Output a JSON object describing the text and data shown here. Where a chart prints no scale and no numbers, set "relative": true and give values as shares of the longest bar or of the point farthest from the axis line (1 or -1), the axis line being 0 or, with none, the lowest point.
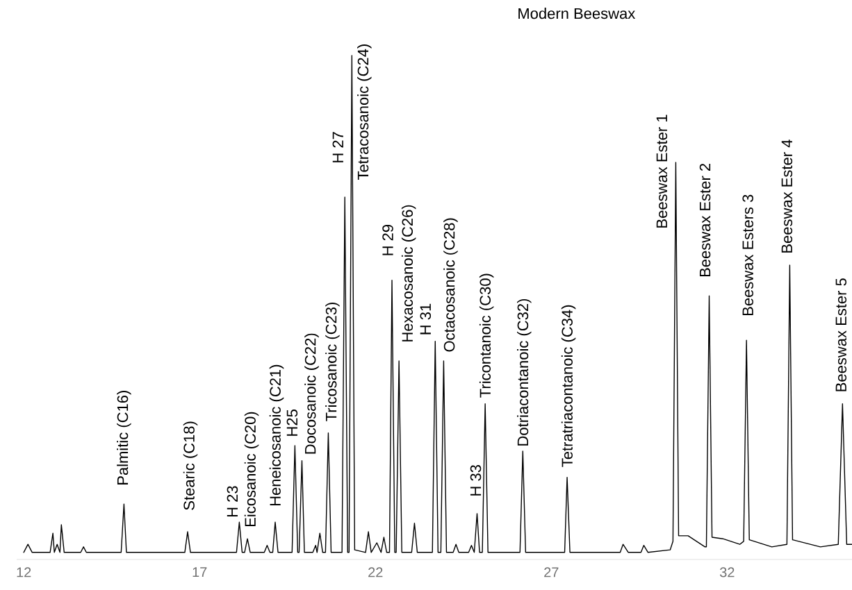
{
  "chart_data": {
    "type": "line",
    "title": "Modern Beeswax",
    "relative": true,
    "xlim": [
      11.8,
      35.55
    ],
    "xticks": [
      12,
      17,
      22,
      27,
      32
    ],
    "x": [
      12.0,
      12.12,
      12.24,
      12.75,
      12.83,
      12.87,
      12.95,
      13.03,
      13.07,
      13.15,
      13.62,
      13.7,
      13.78,
      14.77,
      14.85,
      14.92,
      16.58,
      16.66,
      16.74,
      18.05,
      18.13,
      18.21,
      18.28,
      18.36,
      18.44,
      18.84,
      18.92,
      19.0,
      19.08,
      19.15,
      19.23,
      19.63,
      19.71,
      19.79,
      19.83,
      19.91,
      19.98,
      20.22,
      20.3,
      20.34,
      20.42,
      20.5,
      20.58,
      20.66,
      20.74,
      21.05,
      21.13,
      21.21,
      21.25,
      21.33,
      21.41,
      21.72,
      21.8,
      21.88,
      22.04,
      22.16,
      22.24,
      22.32,
      22.4,
      22.47,
      22.55,
      22.59,
      22.67,
      22.75,
      23.03,
      23.11,
      23.19,
      23.62,
      23.7,
      23.78,
      23.86,
      23.94,
      24.02,
      24.21,
      24.29,
      24.37,
      24.65,
      24.73,
      24.81,
      24.89,
      24.96,
      25.04,
      25.12,
      25.2,
      26.11,
      26.19,
      26.27,
      27.38,
      27.45,
      27.53,
      28.96,
      29.04,
      29.19,
      29.55,
      29.63,
      29.75,
      30.38,
      30.46,
      30.54,
      30.62,
      30.89,
      31.37,
      31.41,
      31.49,
      31.57,
      31.88,
      32.36,
      32.47,
      32.55,
      32.63,
      33.27,
      33.7,
      33.78,
      33.86,
      34.65,
      35.16,
      35.28,
      35.4,
      35.55
    ],
    "series": [
      {
        "color": "#000000",
        "values": [
          0.014,
          0.03,
          0.014,
          0.014,
          0.052,
          0.014,
          0.03,
          0.014,
          0.069,
          0.014,
          0.014,
          0.025,
          0.014,
          0.014,
          0.11,
          0.014,
          0.014,
          0.055,
          0.014,
          0.014,
          0.074,
          0.014,
          0.014,
          0.041,
          0.014,
          0.014,
          0.028,
          0.014,
          0.014,
          0.074,
          0.014,
          0.014,
          0.226,
          0.014,
          0.014,
          0.196,
          0.014,
          0.014,
          0.028,
          0.014,
          0.052,
          0.014,
          0.014,
          0.251,
          0.014,
          0.014,
          0.719,
          0.014,
          0.014,
          1,
          0.019,
          0.014,
          0.055,
          0.014,
          0.033,
          0.014,
          0.044,
          0.014,
          0.014,
          0.554,
          0.014,
          0.014,
          0.394,
          0.014,
          0.014,
          0.072,
          0.014,
          0.014,
          0.433,
          0.014,
          0.014,
          0.394,
          0.014,
          0.014,
          0.03,
          0.014,
          0.014,
          0.028,
          0.014,
          0.091,
          0.014,
          0.014,
          0.309,
          0.014,
          0.014,
          0.215,
          0.014,
          0.014,
          0.163,
          0.014,
          0.014,
          0.03,
          0.014,
          0.014,
          0.028,
          0.014,
          0.019,
          0.036,
          0.788,
          0.047,
          0.047,
          0.025,
          0.025,
          0.523,
          0.044,
          0.041,
          0.03,
          0.036,
          0.435,
          0.039,
          0.025,
          0.03,
          0.584,
          0.039,
          0.025,
          0.03,
          0.309,
          0.03,
          0.03
        ]
      }
    ],
    "annotations": [
      {
        "text": "Palmitic (C16)",
        "x": 14.85,
        "y": 0.11
      },
      {
        "text": "Stearic (C18)",
        "x": 16.66,
        "y": 0.055
      },
      {
        "text": "H 23",
        "x": 18.13,
        "y": 0.074
      },
      {
        "text": "Eicosanoic (C20)",
        "x": 18.36,
        "y": 0.041
      },
      {
        "text": "Heneicosanoic (C21)",
        "x": 19.15,
        "y": 0.074
      },
      {
        "text": "H25",
        "x": 19.71,
        "y": 0.226
      },
      {
        "text": "Docosanoic (C22)",
        "x": 19.91,
        "y": 0.196
      },
      {
        "text": "Tricosanoic (C23)",
        "x": 20.66,
        "y": 0.251
      },
      {
        "text": "H 27",
        "x": 21.13,
        "y": 0.719
      },
      {
        "text": "Tetracosanoic (C24)",
        "x": 21.33,
        "y": 1
      },
      {
        "text": "H 29",
        "x": 22.47,
        "y": 0.554
      },
      {
        "text": "Hexacosanoic (C26)",
        "x": 22.67,
        "y": 0.394
      },
      {
        "text": "H 31",
        "x": 23.7,
        "y": 0.433
      },
      {
        "text": "Octacosanoic (C28)",
        "x": 23.94,
        "y": 0.394
      },
      {
        "text": "H 33",
        "x": 24.89,
        "y": 0.091
      },
      {
        "text": "Tricontanoic (C30)",
        "x": 25.12,
        "y": 0.309
      },
      {
        "text": "Dotriacontanoic (C32)",
        "x": 26.19,
        "y": 0.215
      },
      {
        "text": "Tetratriacontanoic (C34)",
        "x": 27.45,
        "y": 0.163
      },
      {
        "text": "Beeswax Ester 1",
        "x": 30.54,
        "y": 0.788
      },
      {
        "text": "Beeswax Ester 2",
        "x": 31.49,
        "y": 0.523
      },
      {
        "text": "Beeswax Esters 3",
        "x": 32.55,
        "y": 0.435
      },
      {
        "text": "Beeswax Ester 4",
        "x": 33.78,
        "y": 0.584
      },
      {
        "text": "Beeswax Ester 5",
        "x": 35.28,
        "y": 0.309
      }
    ]
  }
}
